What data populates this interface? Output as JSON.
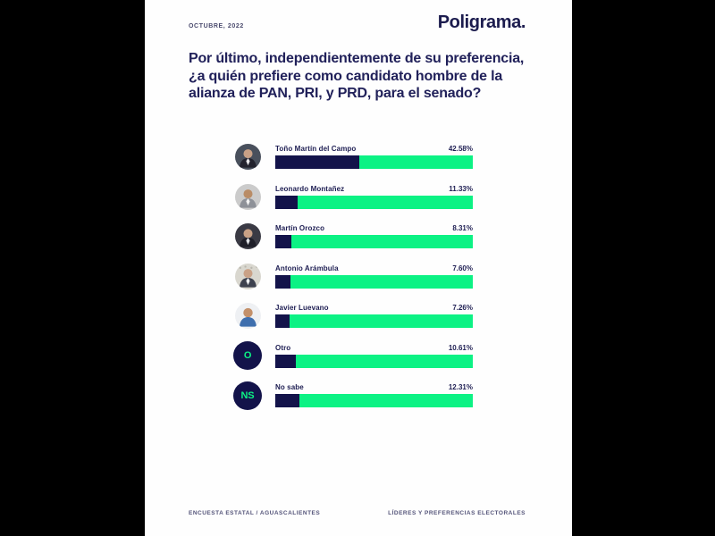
{
  "page": {
    "date": "OCTUBRE, 2022",
    "brand": "Poligrama.",
    "question": "Por último, independientemente de su preferencia, ¿a quién prefiere como candidato hombre de la alianza de PAN, PRI, y PRD, para el senado?",
    "footer_left": "ENCUESTA ESTATAL / AGUASCALIENTES",
    "footer_right": "LÍDERES Y PREFERENCIAS ELECTORALES"
  },
  "colors": {
    "page_background": "#000000",
    "card_background": "#FEFEFE",
    "navy": "#13134A",
    "green": "#0CF284",
    "title_text": "#21215A",
    "muted_text": "#55557A"
  },
  "chart_data": {
    "type": "bar",
    "orientation": "horizontal",
    "title": "Por último, independientemente de su preferencia, ¿a quién prefiere como candidato hombre de la alianza de PAN, PRI, y PRD, para el senado?",
    "categories": [
      "Toño Martín del Campo",
      "Leonardo Montañez",
      "Martín Orozco",
      "Antonio Arámbula",
      "Javier Luevano",
      "Otro",
      "No sabe"
    ],
    "values": [
      42.58,
      11.33,
      8.31,
      7.6,
      7.26,
      10.61,
      12.31
    ],
    "value_labels": [
      "42.58%",
      "11.33%",
      "8.31%",
      "7.60%",
      "7.26%",
      "10.61%",
      "12.31%"
    ],
    "unit": "%",
    "xlim": [
      0,
      100
    ],
    "grid": false,
    "legend_position": "none",
    "bar_fill_color": "#13134A",
    "bar_track_color": "#0CF284"
  },
  "rows": [
    {
      "name": "Toño Martín del Campo",
      "pct": "42.58%",
      "value": 42.58,
      "avatar": "photo"
    },
    {
      "name": "Leonardo Montañez",
      "pct": "11.33%",
      "value": 11.33,
      "avatar": "photo"
    },
    {
      "name": "Martín Orozco",
      "pct": "8.31%",
      "value": 8.31,
      "avatar": "photo"
    },
    {
      "name": "Antonio Arámbula",
      "pct": "7.60%",
      "value": 7.6,
      "avatar": "photo"
    },
    {
      "name": "Javier Luevano",
      "pct": "7.26%",
      "value": 7.26,
      "avatar": "photo"
    },
    {
      "name": "Otro",
      "pct": "10.61%",
      "value": 10.61,
      "avatar": "badge",
      "badge": "O"
    },
    {
      "name": "No sabe",
      "pct": "12.31%",
      "value": 12.31,
      "avatar": "badge",
      "badge": "NS"
    }
  ]
}
